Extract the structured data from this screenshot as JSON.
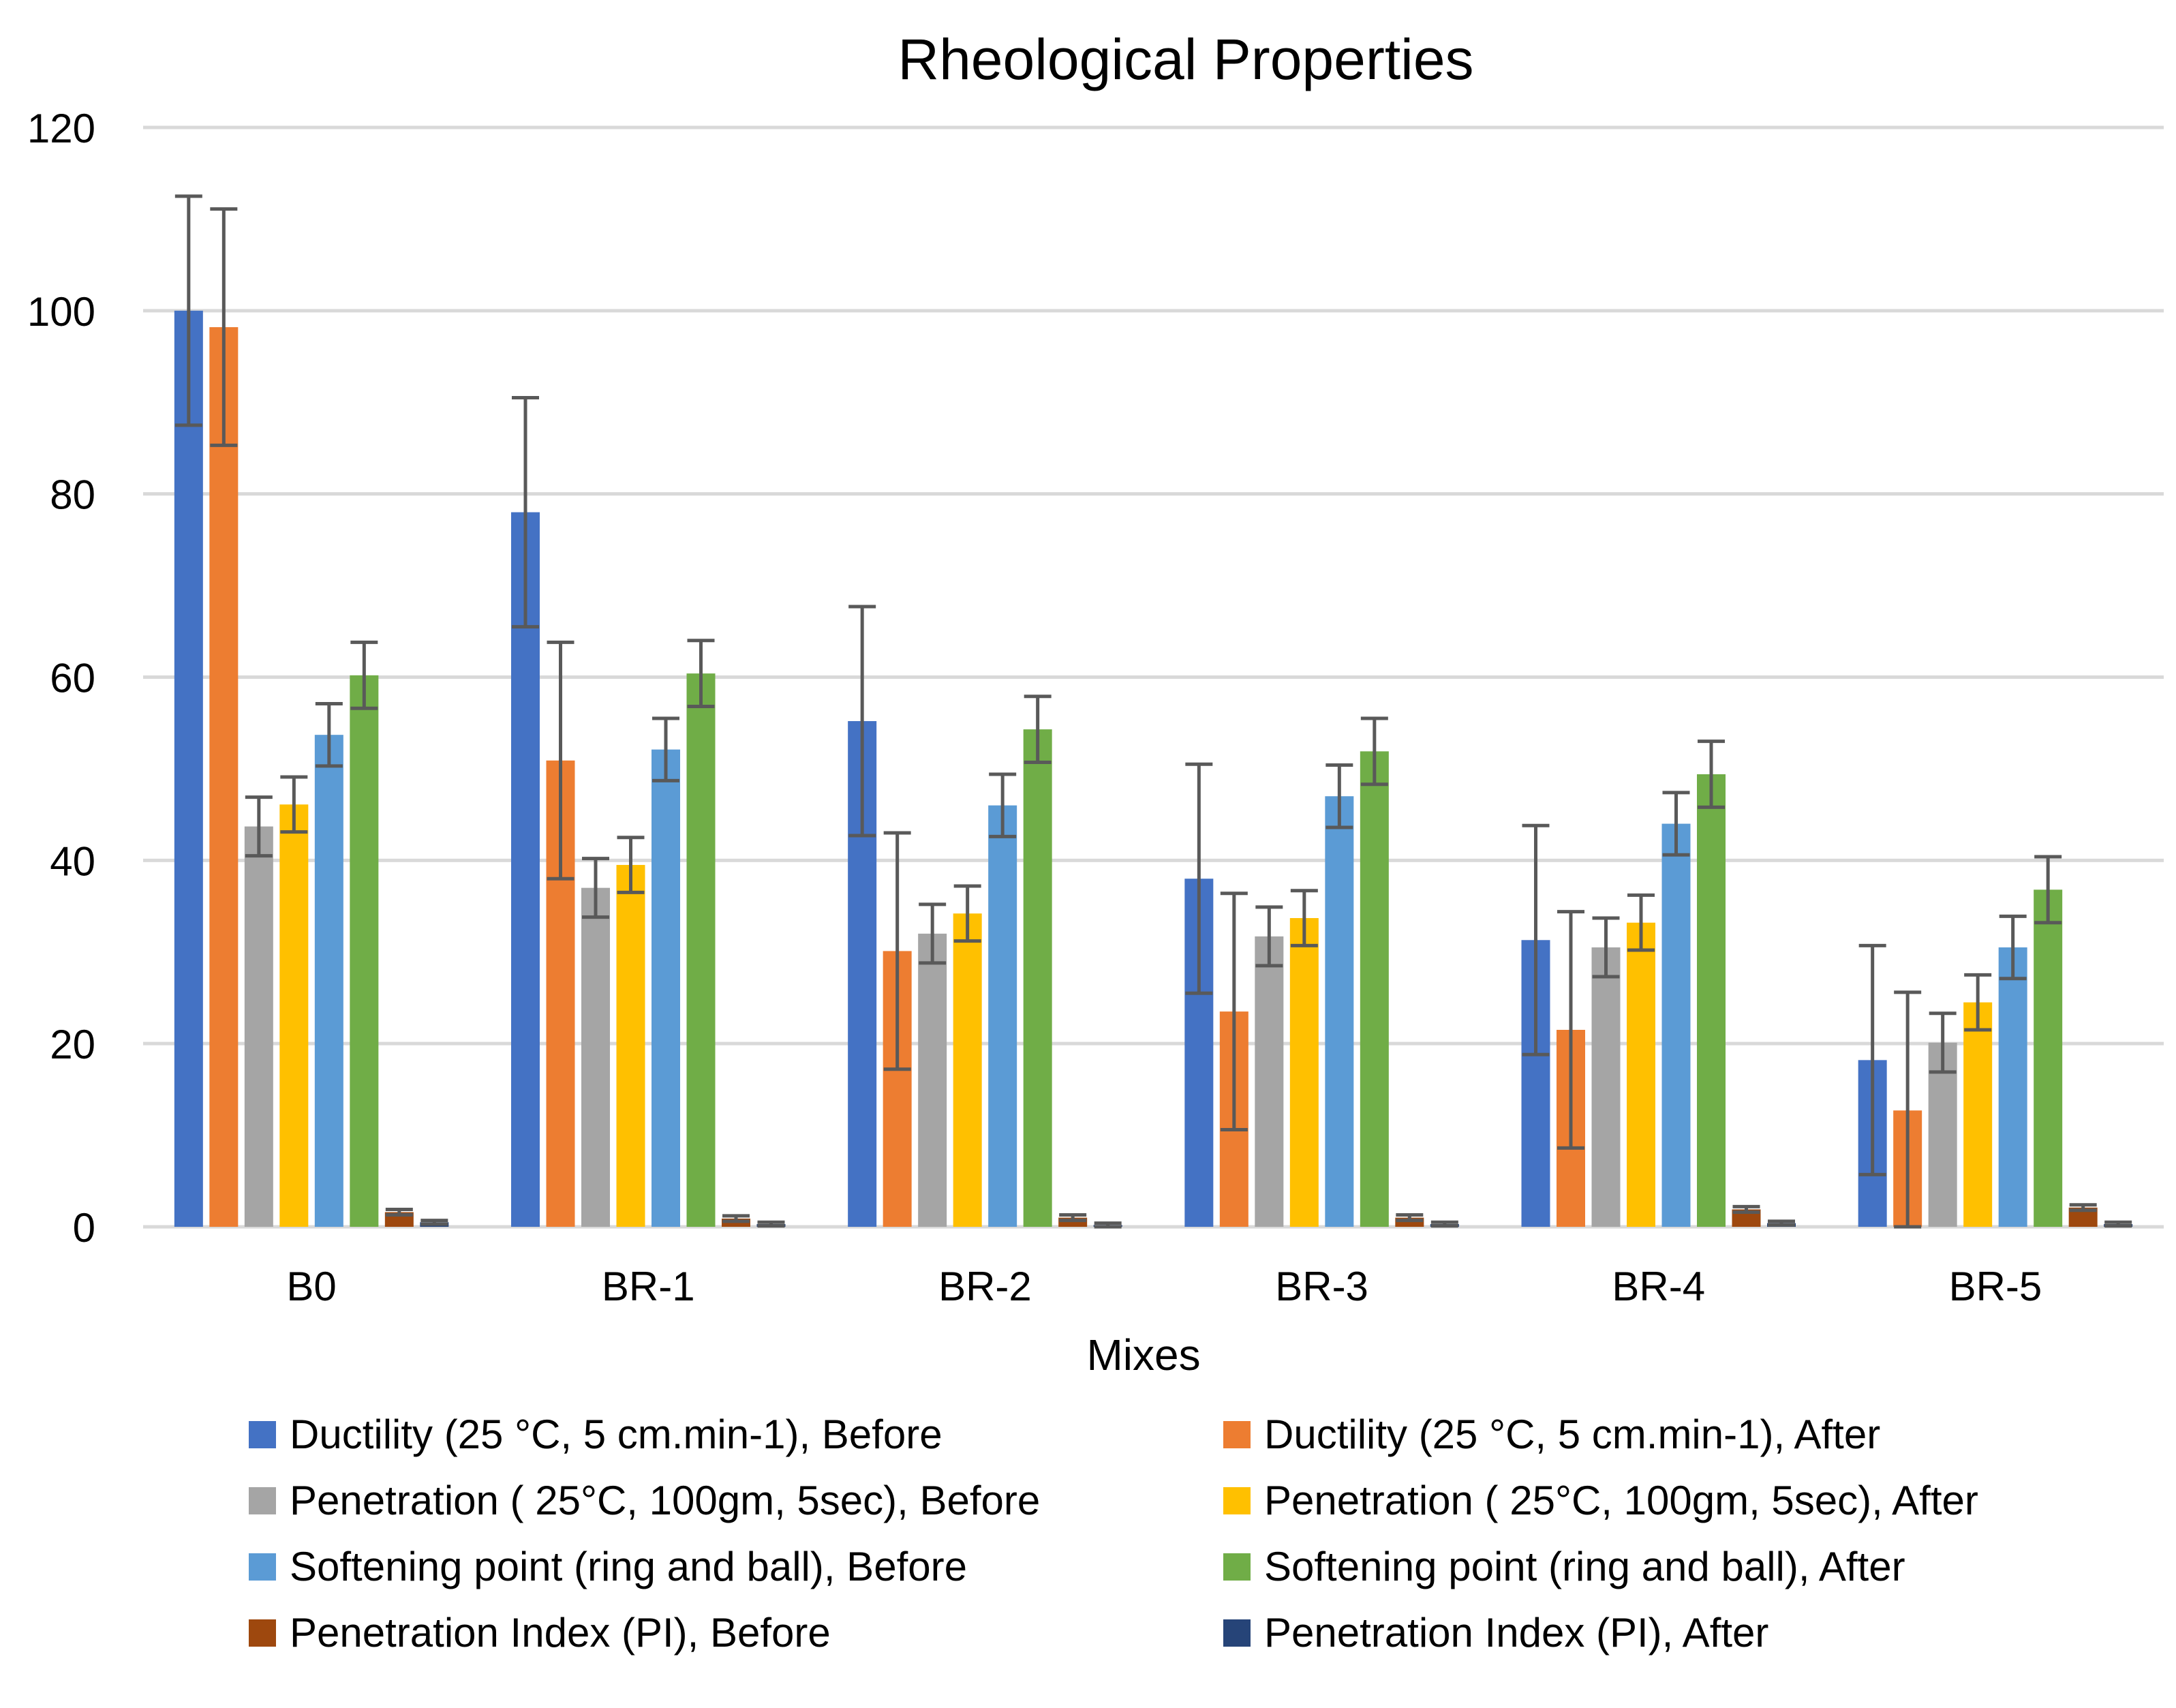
{
  "chart_data": {
    "type": "bar",
    "title": "Rheological Properties",
    "xlabel": "Mixes",
    "ylabel": "",
    "ylim": [
      0,
      120
    ],
    "yticks": [
      0,
      20,
      40,
      60,
      80,
      100,
      120
    ],
    "grid": true,
    "error_bars": true,
    "legend_position": "bottom",
    "categories": [
      "B0",
      "BR-1",
      "BR-2",
      "BR-3",
      "BR-4",
      "BR-5"
    ],
    "series": [
      {
        "name": "Ductility (25 °C, 5 cm.min-1), Before",
        "color": "#4472C4",
        "values": [
          100,
          78,
          55.2,
          38,
          31.3,
          18.2
        ],
        "errors": [
          12.5,
          12.5,
          12.5,
          12.5,
          12.5,
          12.5
        ]
      },
      {
        "name": "Ductility (25 °C, 5 cm.min-1), After",
        "color": "#ED7D31",
        "values": [
          98.2,
          50.9,
          30.1,
          23.5,
          21.5,
          12.7
        ],
        "errors": [
          12.9,
          12.9,
          12.9,
          12.9,
          12.9,
          12.9
        ]
      },
      {
        "name": "Penetration ( 25°C, 100gm, 5sec), Before",
        "color": "#A5A5A5",
        "values": [
          43.7,
          37,
          32,
          31.7,
          30.5,
          20.1
        ],
        "errors": [
          3.2,
          3.2,
          3.2,
          3.2,
          3.2,
          3.2
        ]
      },
      {
        "name": "Penetration ( 25°C, 100gm, 5sec), After",
        "color": "#FFC000",
        "values": [
          46.1,
          39.5,
          34.2,
          33.7,
          33.2,
          24.5
        ],
        "errors": [
          3.0,
          3.0,
          3.0,
          3.0,
          3.0,
          3.0
        ]
      },
      {
        "name": "Softening point (ring and ball), Before",
        "color": "#5B9BD5",
        "values": [
          53.7,
          52.1,
          46,
          47,
          44,
          30.5
        ],
        "errors": [
          3.4,
          3.4,
          3.4,
          3.4,
          3.4,
          3.4
        ]
      },
      {
        "name": "Softening point (ring and ball), After",
        "color": "#70AD47",
        "values": [
          60.2,
          60.4,
          54.3,
          51.9,
          49.4,
          36.8
        ],
        "errors": [
          3.6,
          3.6,
          3.6,
          3.6,
          3.6,
          3.6
        ]
      },
      {
        "name": "Penetration Index  (PI), Before",
        "color": "#9E480E",
        "values": [
          1.6,
          0.9,
          1.0,
          1.0,
          1.9,
          2.1
        ],
        "errors": [
          0.3,
          0.3,
          0.3,
          0.3,
          0.3,
          0.3
        ]
      },
      {
        "name": "Penetration Index (PI), After",
        "color": "#264478",
        "values": [
          0.5,
          0.3,
          0.2,
          0.3,
          0.4,
          0.3
        ],
        "errors": [
          0.2,
          0.2,
          0.2,
          0.2,
          0.2,
          0.2
        ]
      }
    ],
    "style": {
      "grid_color": "#D9D9D9",
      "axis_color": "#D9D9D9",
      "error_bar_color": "#595959",
      "text_color": "#000000"
    }
  }
}
